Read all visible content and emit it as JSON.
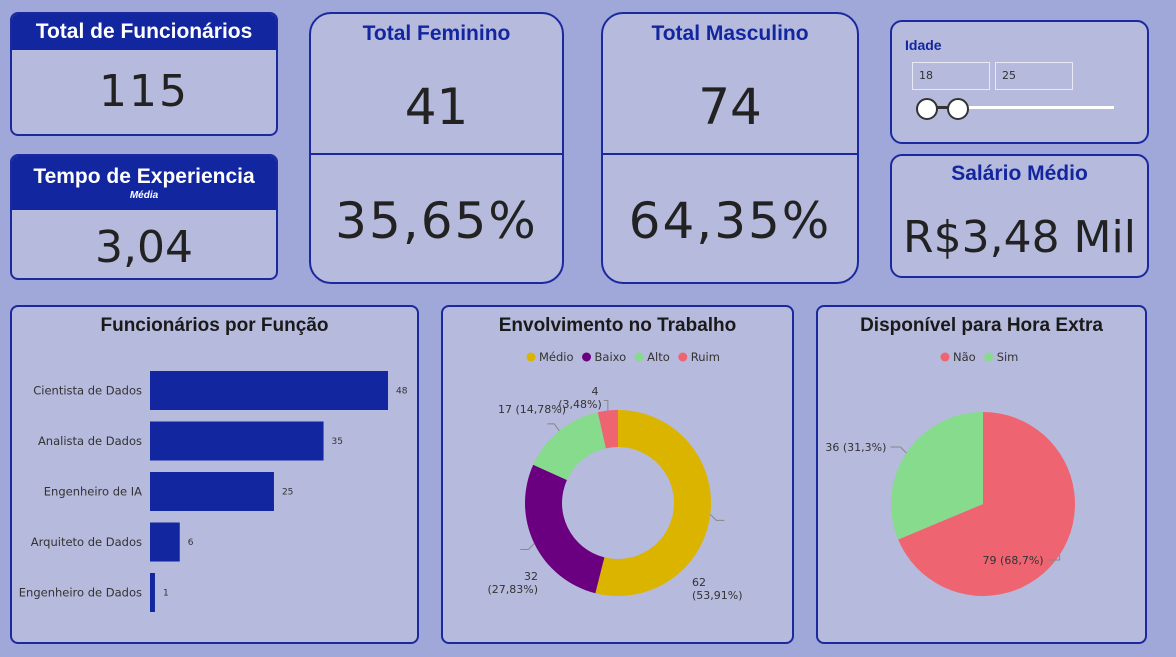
{
  "kpi_total": {
    "title": "Total de Funcionários",
    "value": "115"
  },
  "kpi_experience": {
    "title": "Tempo de Experiencia",
    "subtitle": "Média",
    "value": "3,04"
  },
  "kpi_female": {
    "title": "Total Feminino",
    "count": "41",
    "percent": "35,65%"
  },
  "kpi_male": {
    "title": "Total Masculino",
    "count": "74",
    "percent": "64,35%"
  },
  "age_slicer": {
    "title": "Idade",
    "min": "18",
    "max": "25",
    "range_fraction": [
      0.0,
      0.1
    ]
  },
  "kpi_salary": {
    "title": "Salário Médio",
    "value": "R$3,48 Mil"
  },
  "colors": {
    "bar": "#1226a0",
    "medio": "#dbb400",
    "baixo": "#6a0080",
    "alto": "#86dc8c",
    "ruim": "#ee6470",
    "nao": "#ee6470",
    "sim": "#86dc8c"
  },
  "chart_data": [
    {
      "type": "bar",
      "orientation": "horizontal",
      "title": "Funcionários por Função",
      "categories": [
        "Cientista de Dados",
        "Analista de Dados",
        "Engenheiro de IA",
        "Arquiteto de Dados",
        "Engenheiro de Dados"
      ],
      "values": [
        48,
        35,
        25,
        6,
        1
      ],
      "data_labels": [
        "48",
        "35",
        "25",
        "6",
        "1"
      ]
    },
    {
      "type": "pie",
      "variant": "donut",
      "title": "Envolvimento no Trabalho",
      "legend_position": "top",
      "legend": [
        "Médio",
        "Baixo",
        "Alto",
        "Ruim"
      ],
      "slices": [
        {
          "name": "Médio",
          "value": 62,
          "label": "62",
          "pct_label": "(53,91%)"
        },
        {
          "name": "Baixo",
          "value": 32,
          "label": "32",
          "pct_label": "(27,83%)"
        },
        {
          "name": "Alto",
          "value": 17,
          "label": "17 (14,78%)"
        },
        {
          "name": "Ruim",
          "value": 4,
          "label": "4",
          "pct_label": "(3,48%)"
        }
      ]
    },
    {
      "type": "pie",
      "title": "Disponível para Hora Extra",
      "legend_position": "top",
      "legend": [
        "Não",
        "Sim"
      ],
      "slices": [
        {
          "name": "Não",
          "value": 79,
          "label": "79 (68,7%)"
        },
        {
          "name": "Sim",
          "value": 36,
          "label": "36 (31,3%)"
        }
      ]
    }
  ]
}
